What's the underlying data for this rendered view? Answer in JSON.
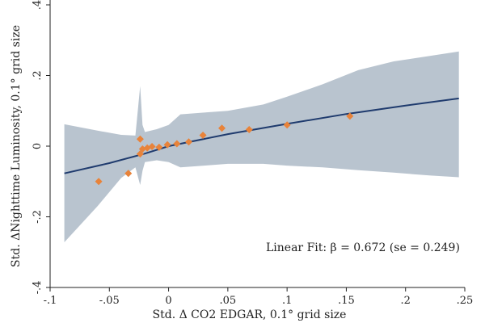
{
  "chart_data": {
    "type": "scatter",
    "xlabel": "Std. Δ CO2 EDGAR, 0.1° grid size",
    "ylabel": "Std. ΔNighttime Luminosity, 0.1° grid size",
    "xlim": [
      -0.1,
      0.25
    ],
    "ylim": [
      -0.4,
      0.4
    ],
    "xticks": [
      -0.1,
      -0.05,
      0,
      0.05,
      0.1,
      0.15,
      0.2,
      0.25
    ],
    "xtick_labels": [
      "-.1",
      "-.05",
      "0",
      ".05",
      ".1",
      ".15",
      ".2",
      ".25"
    ],
    "yticks": [
      -0.4,
      -0.2,
      0,
      0.2,
      0.4
    ],
    "ytick_labels": [
      "-.4",
      "-.2",
      "0",
      ".2",
      ".4"
    ],
    "grid": false,
    "annotation": "Linear Fit: β = 0.672 (se = 0.249)",
    "colors": {
      "points": "#e8833a",
      "fit_line": "#1f3b6e",
      "confidence_band": "#b9c4cf"
    },
    "series": [
      {
        "type": "scatter",
        "points": [
          {
            "x": -0.059,
            "y": -0.1
          },
          {
            "x": -0.034,
            "y": -0.077
          },
          {
            "x": -0.024,
            "y": 0.02
          },
          {
            "x": -0.024,
            "y": -0.022
          },
          {
            "x": -0.022,
            "y": -0.008
          },
          {
            "x": -0.018,
            "y": -0.005
          },
          {
            "x": -0.014,
            "y": -0.001
          },
          {
            "x": -0.008,
            "y": -0.003
          },
          {
            "x": -0.001,
            "y": 0.004
          },
          {
            "x": 0.007,
            "y": 0.007
          },
          {
            "x": 0.017,
            "y": 0.012
          },
          {
            "x": 0.029,
            "y": 0.031
          },
          {
            "x": 0.045,
            "y": 0.051
          },
          {
            "x": 0.068,
            "y": 0.047
          },
          {
            "x": 0.1,
            "y": 0.06
          },
          {
            "x": 0.153,
            "y": 0.085
          }
        ]
      },
      {
        "type": "line",
        "x": [
          -0.088,
          -0.05,
          -0.02,
          0,
          0.05,
          0.1,
          0.15,
          0.2,
          0.245
        ],
        "y": [
          -0.077,
          -0.048,
          -0.021,
          0.0,
          0.034,
          0.063,
          0.091,
          0.115,
          0.135
        ]
      },
      {
        "type": "band",
        "x": [
          -0.088,
          -0.06,
          -0.04,
          -0.028,
          -0.024,
          -0.022,
          -0.02,
          -0.01,
          0,
          0.01,
          0.03,
          0.05,
          0.08,
          0.1,
          0.13,
          0.16,
          0.19,
          0.22,
          0.245
        ],
        "upper": [
          0.062,
          0.044,
          0.032,
          0.03,
          0.17,
          0.06,
          0.04,
          0.048,
          0.06,
          0.09,
          0.095,
          0.1,
          0.118,
          0.14,
          0.175,
          0.215,
          0.24,
          0.255,
          0.268
        ],
        "lower": [
          -0.272,
          -0.17,
          -0.09,
          -0.06,
          -0.11,
          -0.07,
          -0.045,
          -0.04,
          -0.045,
          -0.06,
          -0.055,
          -0.05,
          -0.05,
          -0.055,
          -0.06,
          -0.068,
          -0.075,
          -0.083,
          -0.088
        ]
      }
    ]
  }
}
